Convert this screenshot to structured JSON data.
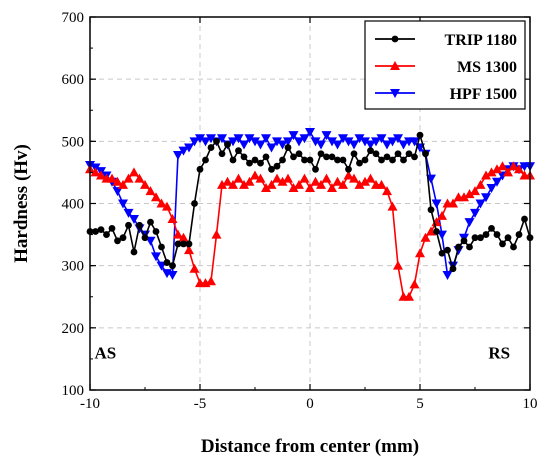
{
  "chart_data": {
    "type": "line",
    "xlabel": "Distance from center (mm)",
    "ylabel": "Hardness (Hv)",
    "xlim": [
      -10,
      10
    ],
    "ylim": [
      100,
      700
    ],
    "xticks": [
      -10,
      -5,
      0,
      5,
      10
    ],
    "yticks": [
      100,
      200,
      300,
      400,
      500,
      600,
      700
    ],
    "grid": true,
    "legend_position": "top-right",
    "annotations": [
      {
        "text": "AS",
        "x": -9.3,
        "y": 160
      },
      {
        "text": "RS",
        "x": 8.6,
        "y": 160
      }
    ],
    "series": [
      {
        "name": "TRIP 1180",
        "color": "#000000",
        "marker": "circle",
        "x": [
          -10.0,
          -9.75,
          -9.5,
          -9.25,
          -9.0,
          -8.75,
          -8.5,
          -8.25,
          -8.0,
          -7.75,
          -7.5,
          -7.25,
          -7.0,
          -6.75,
          -6.5,
          -6.25,
          -6.0,
          -5.75,
          -5.5,
          -5.25,
          -5.0,
          -4.75,
          -4.5,
          -4.25,
          -4.0,
          -3.75,
          -3.5,
          -3.25,
          -3.0,
          -2.75,
          -2.5,
          -2.25,
          -2.0,
          -1.75,
          -1.5,
          -1.25,
          -1.0,
          -0.75,
          -0.5,
          -0.25,
          0.0,
          0.25,
          0.5,
          0.75,
          1.0,
          1.25,
          1.5,
          1.75,
          2.0,
          2.25,
          2.5,
          2.75,
          3.0,
          3.25,
          3.5,
          3.75,
          4.0,
          4.25,
          4.5,
          4.75,
          5.0,
          5.25,
          5.5,
          5.75,
          6.0,
          6.25,
          6.5,
          6.75,
          7.0,
          7.25,
          7.5,
          7.75,
          8.0,
          8.25,
          8.5,
          8.75,
          9.0,
          9.25,
          9.5,
          9.75,
          10.0
        ],
        "y": [
          355,
          355,
          358,
          350,
          360,
          340,
          345,
          365,
          322,
          365,
          345,
          370,
          355,
          330,
          305,
          300,
          335,
          335,
          335,
          400,
          455,
          470,
          490,
          500,
          480,
          495,
          470,
          485,
          475,
          465,
          470,
          465,
          475,
          455,
          460,
          470,
          490,
          475,
          480,
          470,
          470,
          455,
          480,
          475,
          475,
          470,
          470,
          455,
          480,
          465,
          470,
          485,
          480,
          470,
          475,
          470,
          480,
          470,
          480,
          475,
          510,
          480,
          390,
          355,
          320,
          325,
          295,
          330,
          340,
          330,
          345,
          345,
          350,
          360,
          350,
          335,
          345,
          330,
          350,
          375,
          345
        ]
      },
      {
        "name": "MS 1300",
        "color": "#ff0000",
        "marker": "triangle-up",
        "x": [
          -10.0,
          -9.75,
          -9.5,
          -9.25,
          -9.0,
          -8.75,
          -8.5,
          -8.25,
          -8.0,
          -7.75,
          -7.5,
          -7.25,
          -7.0,
          -6.75,
          -6.5,
          -6.25,
          -6.0,
          -5.75,
          -5.5,
          -5.25,
          -5.0,
          -4.75,
          -4.5,
          -4.25,
          -4.0,
          -3.75,
          -3.5,
          -3.25,
          -3.0,
          -2.75,
          -2.5,
          -2.25,
          -2.0,
          -1.75,
          -1.5,
          -1.25,
          -1.0,
          -0.75,
          -0.5,
          -0.25,
          0.0,
          0.25,
          0.5,
          0.75,
          1.0,
          1.25,
          1.5,
          1.75,
          2.0,
          2.25,
          2.5,
          2.75,
          3.0,
          3.25,
          3.5,
          3.75,
          4.0,
          4.25,
          4.5,
          4.75,
          5.0,
          5.25,
          5.5,
          5.75,
          6.0,
          6.25,
          6.5,
          6.75,
          7.0,
          7.25,
          7.5,
          7.75,
          8.0,
          8.25,
          8.5,
          8.75,
          9.0,
          9.25,
          9.5,
          9.75,
          10.0
        ],
        "y": [
          455,
          450,
          445,
          440,
          440,
          435,
          430,
          440,
          450,
          440,
          430,
          420,
          410,
          400,
          395,
          375,
          350,
          345,
          325,
          295,
          272,
          272,
          275,
          350,
          430,
          435,
          430,
          440,
          430,
          435,
          445,
          440,
          425,
          430,
          440,
          435,
          440,
          425,
          430,
          440,
          425,
          435,
          430,
          440,
          425,
          435,
          430,
          445,
          440,
          430,
          435,
          440,
          430,
          430,
          420,
          395,
          300,
          250,
          250,
          270,
          320,
          345,
          355,
          370,
          380,
          400,
          400,
          410,
          410,
          415,
          420,
          430,
          445,
          450,
          455,
          460,
          450,
          460,
          455,
          445,
          445
        ]
      },
      {
        "name": "HPF 1500",
        "color": "#0000ff",
        "marker": "triangle-down",
        "x": [
          -10.0,
          -9.75,
          -9.5,
          -9.25,
          -9.0,
          -8.75,
          -8.5,
          -8.25,
          -8.0,
          -7.75,
          -7.5,
          -7.25,
          -7.0,
          -6.75,
          -6.5,
          -6.25,
          -6.0,
          -5.75,
          -5.5,
          -5.25,
          -5.0,
          -4.75,
          -4.5,
          -4.25,
          -4.0,
          -3.75,
          -3.5,
          -3.25,
          -3.0,
          -2.75,
          -2.5,
          -2.25,
          -2.0,
          -1.75,
          -1.5,
          -1.25,
          -1.0,
          -0.75,
          -0.5,
          -0.25,
          0.0,
          0.25,
          0.5,
          0.75,
          1.0,
          1.25,
          1.5,
          1.75,
          2.0,
          2.25,
          2.5,
          2.75,
          3.0,
          3.25,
          3.5,
          3.75,
          4.0,
          4.25,
          4.5,
          4.75,
          5.0,
          5.25,
          5.5,
          5.75,
          6.0,
          6.25,
          6.5,
          6.75,
          7.0,
          7.25,
          7.5,
          7.75,
          8.0,
          8.25,
          8.5,
          8.75,
          9.0,
          9.25,
          9.5,
          9.75,
          10.0
        ],
        "y": [
          462,
          458,
          452,
          445,
          435,
          420,
          400,
          385,
          375,
          360,
          350,
          340,
          315,
          300,
          288,
          285,
          478,
          485,
          490,
          500,
          505,
          500,
          505,
          500,
          505,
          495,
          500,
          505,
          495,
          505,
          500,
          495,
          505,
          490,
          500,
          495,
          500,
          510,
          500,
          505,
          515,
          500,
          495,
          510,
          500,
          495,
          505,
          500,
          495,
          505,
          500,
          495,
          500,
          505,
          495,
          500,
          505,
          495,
          500,
          500,
          490,
          480,
          440,
          400,
          350,
          285,
          300,
          325,
          345,
          370,
          385,
          400,
          410,
          425,
          435,
          445,
          455,
          460,
          455,
          460,
          460
        ]
      }
    ]
  }
}
